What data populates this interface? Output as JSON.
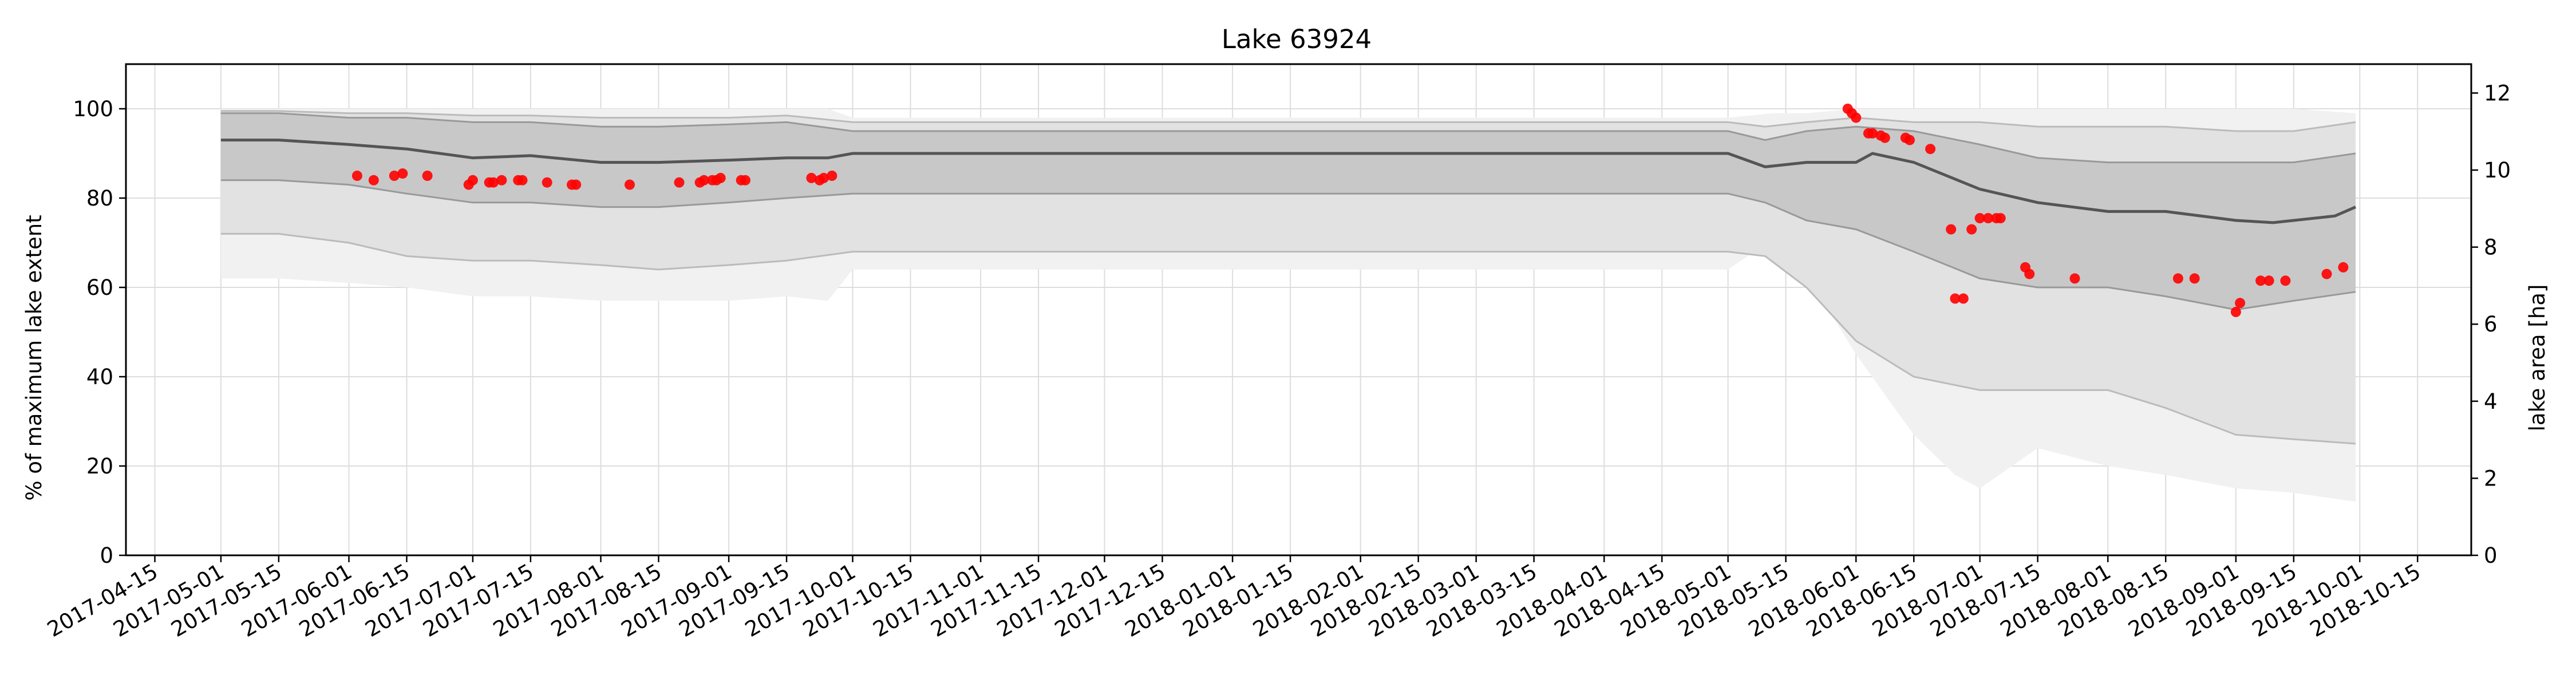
{
  "chart_data": {
    "type": "line",
    "title": "Lake 63924",
    "ylabel": "% of maximum lake extent",
    "ylabel_right": "lake area [ha]",
    "xlabel": "",
    "x_range": [
      "2017-04-08",
      "2018-10-28"
    ],
    "ylim": [
      0,
      110
    ],
    "ylim_right": [
      0,
      12.75
    ],
    "grid": true,
    "x_tick_labels": [
      "2017-04-15",
      "2017-05-01",
      "2017-05-15",
      "2017-06-01",
      "2017-06-15",
      "2017-07-01",
      "2017-07-15",
      "2017-08-01",
      "2017-08-15",
      "2017-09-01",
      "2017-09-15",
      "2017-10-01",
      "2017-10-15",
      "2017-11-01",
      "2017-11-15",
      "2017-12-01",
      "2017-12-15",
      "2018-01-01",
      "2018-01-15",
      "2018-02-01",
      "2018-02-15",
      "2018-03-01",
      "2018-03-15",
      "2018-04-01",
      "2018-04-15",
      "2018-05-01",
      "2018-05-15",
      "2018-06-01",
      "2018-06-15",
      "2018-07-01",
      "2018-07-15",
      "2018-08-01",
      "2018-08-15",
      "2018-09-01",
      "2018-09-15",
      "2018-10-01",
      "2018-10-15"
    ],
    "y_ticks": [
      0,
      20,
      40,
      60,
      80,
      100
    ],
    "y_ticks_right": [
      0,
      2,
      4,
      6,
      8,
      10,
      12
    ],
    "colors": {
      "observations": "#ff0000",
      "median_line": "#555555",
      "band_inner": "#c8c8c8",
      "band_middle": "#e2e2e2",
      "band_outer": "#f1f1f1",
      "grid": "#dddddd"
    },
    "series": [
      {
        "kind": "line",
        "x": [
          "2017-05-01",
          "2017-05-15",
          "2017-06-01",
          "2017-06-15",
          "2017-07-01",
          "2017-07-15",
          "2017-08-01",
          "2017-08-15",
          "2017-09-01",
          "2017-09-15",
          "2017-09-25",
          "2017-10-01",
          "2017-11-01",
          "2018-01-01",
          "2018-03-01",
          "2018-05-01",
          "2018-05-10",
          "2018-05-20",
          "2018-06-01",
          "2018-06-05",
          "2018-06-15",
          "2018-07-01",
          "2018-07-15",
          "2018-08-01",
          "2018-08-15",
          "2018-09-01",
          "2018-09-10",
          "2018-09-15",
          "2018-09-25",
          "2018-09-30"
        ],
        "y": [
          93,
          93,
          92,
          91,
          89,
          89.5,
          88,
          88,
          88.5,
          89,
          89,
          90,
          90,
          90,
          90,
          90,
          87,
          88,
          88,
          90,
          88,
          82,
          79,
          77,
          77,
          75,
          74.5,
          75,
          76,
          78
        ]
      },
      {
        "kind": "band",
        "x": [
          "2017-05-01",
          "2017-05-15",
          "2017-06-01",
          "2017-06-15",
          "2017-07-01",
          "2017-07-15",
          "2017-08-01",
          "2017-08-15",
          "2017-09-01",
          "2017-09-15",
          "2017-10-01",
          "2017-11-01",
          "2018-01-01",
          "2018-03-01",
          "2018-05-01",
          "2018-05-10",
          "2018-05-20",
          "2018-06-01",
          "2018-06-15",
          "2018-07-01",
          "2018-07-15",
          "2018-08-01",
          "2018-08-15",
          "2018-09-01",
          "2018-09-15",
          "2018-09-30"
        ],
        "lower": [
          84,
          84,
          83,
          81,
          79,
          79,
          78,
          78,
          79,
          80,
          81,
          81,
          81,
          81,
          81,
          79,
          75,
          73,
          68,
          62,
          60,
          60,
          58,
          55,
          57,
          59
        ],
        "upper": [
          99,
          99,
          98,
          98,
          97,
          97,
          96,
          96,
          96.5,
          97,
          95,
          95,
          95,
          95,
          95,
          93,
          95,
          96,
          95,
          92,
          89,
          88,
          88,
          88,
          88,
          90
        ]
      },
      {
        "kind": "band",
        "x": [
          "2017-05-01",
          "2017-05-15",
          "2017-06-01",
          "2017-06-15",
          "2017-07-01",
          "2017-07-15",
          "2017-08-01",
          "2017-08-15",
          "2017-09-01",
          "2017-09-15",
          "2017-10-01",
          "2017-11-01",
          "2018-01-01",
          "2018-03-01",
          "2018-05-01",
          "2018-05-10",
          "2018-05-20",
          "2018-06-01",
          "2018-06-15",
          "2018-07-01",
          "2018-07-15",
          "2018-08-01",
          "2018-08-15",
          "2018-09-01",
          "2018-09-15",
          "2018-09-30"
        ],
        "lower": [
          72,
          72,
          70,
          67,
          66,
          66,
          65,
          64,
          65,
          66,
          68,
          68,
          68,
          68,
          68,
          67,
          60,
          48,
          40,
          37,
          37,
          37,
          33,
          27,
          26,
          25
        ],
        "upper": [
          99.5,
          99.5,
          99,
          99,
          98.5,
          98.5,
          98,
          98,
          98,
          98.5,
          97,
          97,
          97,
          97,
          97,
          96,
          97,
          98,
          97,
          97,
          96,
          96,
          96,
          95,
          95,
          97
        ]
      },
      {
        "kind": "band",
        "x": [
          "2017-05-01",
          "2017-05-15",
          "2017-06-01",
          "2017-06-15",
          "2017-07-01",
          "2017-07-15",
          "2017-08-01",
          "2017-08-15",
          "2017-09-01",
          "2017-09-15",
          "2017-09-25",
          "2017-10-01",
          "2017-11-01",
          "2018-01-01",
          "2018-03-01",
          "2018-05-01",
          "2018-05-12",
          "2018-05-20",
          "2018-06-01",
          "2018-06-15",
          "2018-06-25",
          "2018-07-01",
          "2018-07-15",
          "2018-08-01",
          "2018-08-15",
          "2018-09-01",
          "2018-09-15",
          "2018-09-30"
        ],
        "lower": [
          62,
          62,
          61,
          60,
          58,
          58,
          57,
          57,
          57,
          58,
          57,
          64,
          64,
          64,
          64,
          64,
          71,
          63,
          45,
          27,
          18,
          15,
          24,
          20,
          18,
          15,
          14,
          12
        ],
        "upper": [
          100,
          100,
          100,
          100,
          100,
          100,
          100,
          100,
          100,
          100,
          100,
          98,
          98,
          98,
          98,
          98,
          99,
          99,
          100,
          100,
          100,
          100,
          100,
          100,
          100,
          100,
          100,
          99
        ]
      },
      {
        "kind": "scatter",
        "x": [
          "2017-06-03",
          "2017-06-07",
          "2017-06-12",
          "2017-06-14",
          "2017-06-20",
          "2017-06-30",
          "2017-07-01",
          "2017-07-05",
          "2017-07-06",
          "2017-07-08",
          "2017-07-12",
          "2017-07-13",
          "2017-07-19",
          "2017-07-25",
          "2017-07-26",
          "2017-08-08",
          "2017-08-20",
          "2017-08-25",
          "2017-08-26",
          "2017-08-28",
          "2017-08-29",
          "2017-08-30",
          "2017-09-04",
          "2017-09-05",
          "2017-09-21",
          "2017-09-23",
          "2017-09-24",
          "2017-09-26",
          "2018-05-30",
          "2018-05-31",
          "2018-06-01",
          "2018-06-04",
          "2018-06-05",
          "2018-06-07",
          "2018-06-08",
          "2018-06-13",
          "2018-06-14",
          "2018-06-19",
          "2018-06-24",
          "2018-06-25",
          "2018-06-27",
          "2018-06-29",
          "2018-07-01",
          "2018-07-03",
          "2018-07-05",
          "2018-07-06",
          "2018-07-12",
          "2018-07-13",
          "2018-07-24",
          "2018-08-18",
          "2018-08-22",
          "2018-09-01",
          "2018-09-02",
          "2018-09-07",
          "2018-09-09",
          "2018-09-13",
          "2018-09-23",
          "2018-09-27"
        ],
        "y": [
          85,
          84,
          85,
          85.5,
          85,
          83,
          84,
          83.5,
          83.5,
          84,
          84,
          84,
          83.5,
          83,
          83,
          83,
          83.5,
          83.5,
          84,
          84,
          84,
          84.5,
          84,
          84,
          84.5,
          84,
          84.5,
          85,
          100,
          99,
          98,
          94.5,
          94.5,
          94,
          93.5,
          93.5,
          93,
          91,
          73,
          57.5,
          57.5,
          73,
          75.5,
          75.5,
          75.5,
          75.5,
          64.5,
          63,
          62,
          62,
          62,
          54.5,
          56.5,
          61.5,
          61.5,
          61.5,
          63,
          64.5
        ]
      }
    ]
  }
}
